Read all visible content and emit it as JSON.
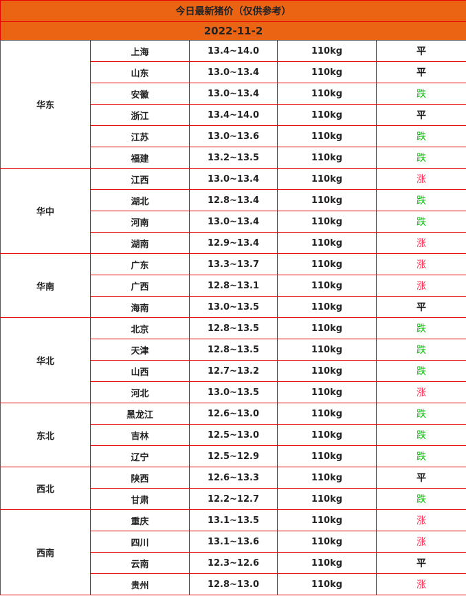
{
  "title": "今日最新猪价（仅供参考）",
  "date": "2022-11-2",
  "colors": {
    "header_bg": "#eb6414",
    "border": "#e60000",
    "up": "#ff3355",
    "down": "#00c000",
    "flat": "#111111"
  },
  "regions": [
    {
      "name": "华东",
      "rows": [
        {
          "province": "上海",
          "price": "13.4~14.0",
          "weight": "110kg",
          "trend": "平"
        },
        {
          "province": "山东",
          "price": "13.0~13.4",
          "weight": "110kg",
          "trend": "平"
        },
        {
          "province": "安徽",
          "price": "13.0~13.4",
          "weight": "110kg",
          "trend": "跌"
        },
        {
          "province": "浙江",
          "price": "13.4~14.0",
          "weight": "110kg",
          "trend": "平"
        },
        {
          "province": "江苏",
          "price": "13.0~13.6",
          "weight": "110kg",
          "trend": "跌"
        },
        {
          "province": "福建",
          "price": "13.2~13.5",
          "weight": "110kg",
          "trend": "跌"
        }
      ]
    },
    {
      "name": "华中",
      "rows": [
        {
          "province": "江西",
          "price": "13.0~13.4",
          "weight": "110kg",
          "trend": "涨"
        },
        {
          "province": "湖北",
          "price": "12.8~13.4",
          "weight": "110kg",
          "trend": "跌"
        },
        {
          "province": "河南",
          "price": "13.0~13.4",
          "weight": "110kg",
          "trend": "跌"
        },
        {
          "province": "湖南",
          "price": "12.9~13.4",
          "weight": "110kg",
          "trend": "涨"
        }
      ]
    },
    {
      "name": "华南",
      "rows": [
        {
          "province": "广东",
          "price": "13.3~13.7",
          "weight": "110kg",
          "trend": "涨"
        },
        {
          "province": "广西",
          "price": "12.8~13.1",
          "weight": "110kg",
          "trend": "涨"
        },
        {
          "province": "海南",
          "price": "13.0~13.5",
          "weight": "110kg",
          "trend": "平"
        }
      ]
    },
    {
      "name": "华北",
      "rows": [
        {
          "province": "北京",
          "price": "12.8~13.5",
          "weight": "110kg",
          "trend": "跌"
        },
        {
          "province": "天津",
          "price": "12.8~13.5",
          "weight": "110kg",
          "trend": "跌"
        },
        {
          "province": "山西",
          "price": "12.7~13.2",
          "weight": "110kg",
          "trend": "跌"
        },
        {
          "province": "河北",
          "price": "13.0~13.5",
          "weight": "110kg",
          "trend": "涨"
        }
      ]
    },
    {
      "name": "东北",
      "rows": [
        {
          "province": "黑龙江",
          "price": "12.6~13.0",
          "weight": "110kg",
          "trend": "跌"
        },
        {
          "province": "吉林",
          "price": "12.5~13.0",
          "weight": "110kg",
          "trend": "跌"
        },
        {
          "province": "辽宁",
          "price": "12.5~12.9",
          "weight": "110kg",
          "trend": "跌"
        }
      ]
    },
    {
      "name": "西北",
      "rows": [
        {
          "province": "陕西",
          "price": "12.6~13.3",
          "weight": "110kg",
          "trend": "平"
        },
        {
          "province": "甘肃",
          "price": "12.2~12.7",
          "weight": "110kg",
          "trend": "跌"
        }
      ]
    },
    {
      "name": "西南",
      "rows": [
        {
          "province": "重庆",
          "price": "13.1~13.5",
          "weight": "110kg",
          "trend": "涨"
        },
        {
          "province": "四川",
          "price": "13.1~13.6",
          "weight": "110kg",
          "trend": "涨"
        },
        {
          "province": "云南",
          "price": "12.3~12.6",
          "weight": "110kg",
          "trend": "平"
        },
        {
          "province": "贵州",
          "price": "12.8~13.0",
          "weight": "110kg",
          "trend": "涨"
        }
      ]
    }
  ]
}
